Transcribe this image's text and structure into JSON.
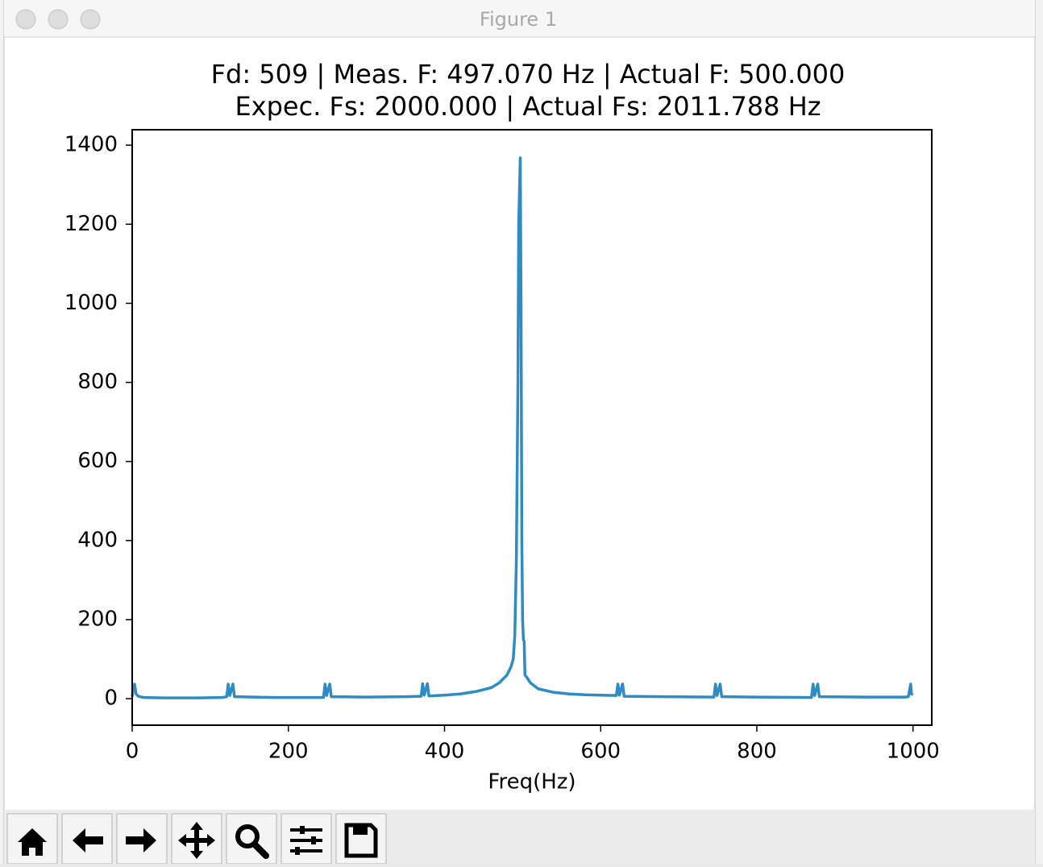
{
  "window": {
    "title": "Figure 1"
  },
  "chart_data": {
    "type": "line",
    "title": [
      "Fd: 509 | Meas. F: 497.070 Hz | Actual F: 500.000",
      "Expec. Fs: 2000.000 | Actual Fs: 2011.788 Hz"
    ],
    "xlabel": "Freq(Hz)",
    "color": "#2e8bc4",
    "x": [
      0,
      1,
      3,
      5,
      8,
      15,
      40,
      80,
      115,
      121,
      123,
      125,
      129,
      131,
      180,
      245,
      247,
      249,
      253,
      255,
      300,
      350,
      370,
      372,
      374,
      378,
      380,
      400,
      420,
      440,
      460,
      470,
      480,
      485,
      488,
      490,
      492,
      494,
      495,
      497,
      498,
      499,
      500,
      501,
      502,
      503,
      505,
      510,
      520,
      540,
      560,
      580,
      600,
      620,
      622,
      624,
      628,
      630,
      680,
      745,
      747,
      749,
      753,
      755,
      800,
      870,
      872,
      874,
      878,
      880,
      940,
      990,
      994,
      997,
      998,
      1000
    ],
    "values": [
      5,
      20,
      37,
      12,
      6,
      3,
      2,
      2,
      3,
      5,
      37,
      8,
      37,
      5,
      3,
      3,
      37,
      8,
      37,
      5,
      4,
      5,
      6,
      38,
      9,
      38,
      7,
      9,
      12,
      18,
      28,
      40,
      60,
      80,
      100,
      160,
      350,
      800,
      1200,
      1368,
      1000,
      400,
      200,
      150,
      145,
      60,
      55,
      40,
      25,
      16,
      12,
      10,
      9,
      8,
      37,
      9,
      37,
      6,
      5,
      4,
      37,
      8,
      37,
      5,
      4,
      3,
      37,
      8,
      37,
      5,
      4,
      4,
      5,
      37,
      12,
      10
    ],
    "xlim": [
      0,
      1024
    ],
    "ylim": [
      -67,
      1439
    ],
    "xticks": [
      0,
      200,
      400,
      600,
      800,
      1000
    ],
    "yticks": [
      0,
      200,
      400,
      600,
      800,
      1000,
      1200,
      1400
    ],
    "grid": false
  }
}
